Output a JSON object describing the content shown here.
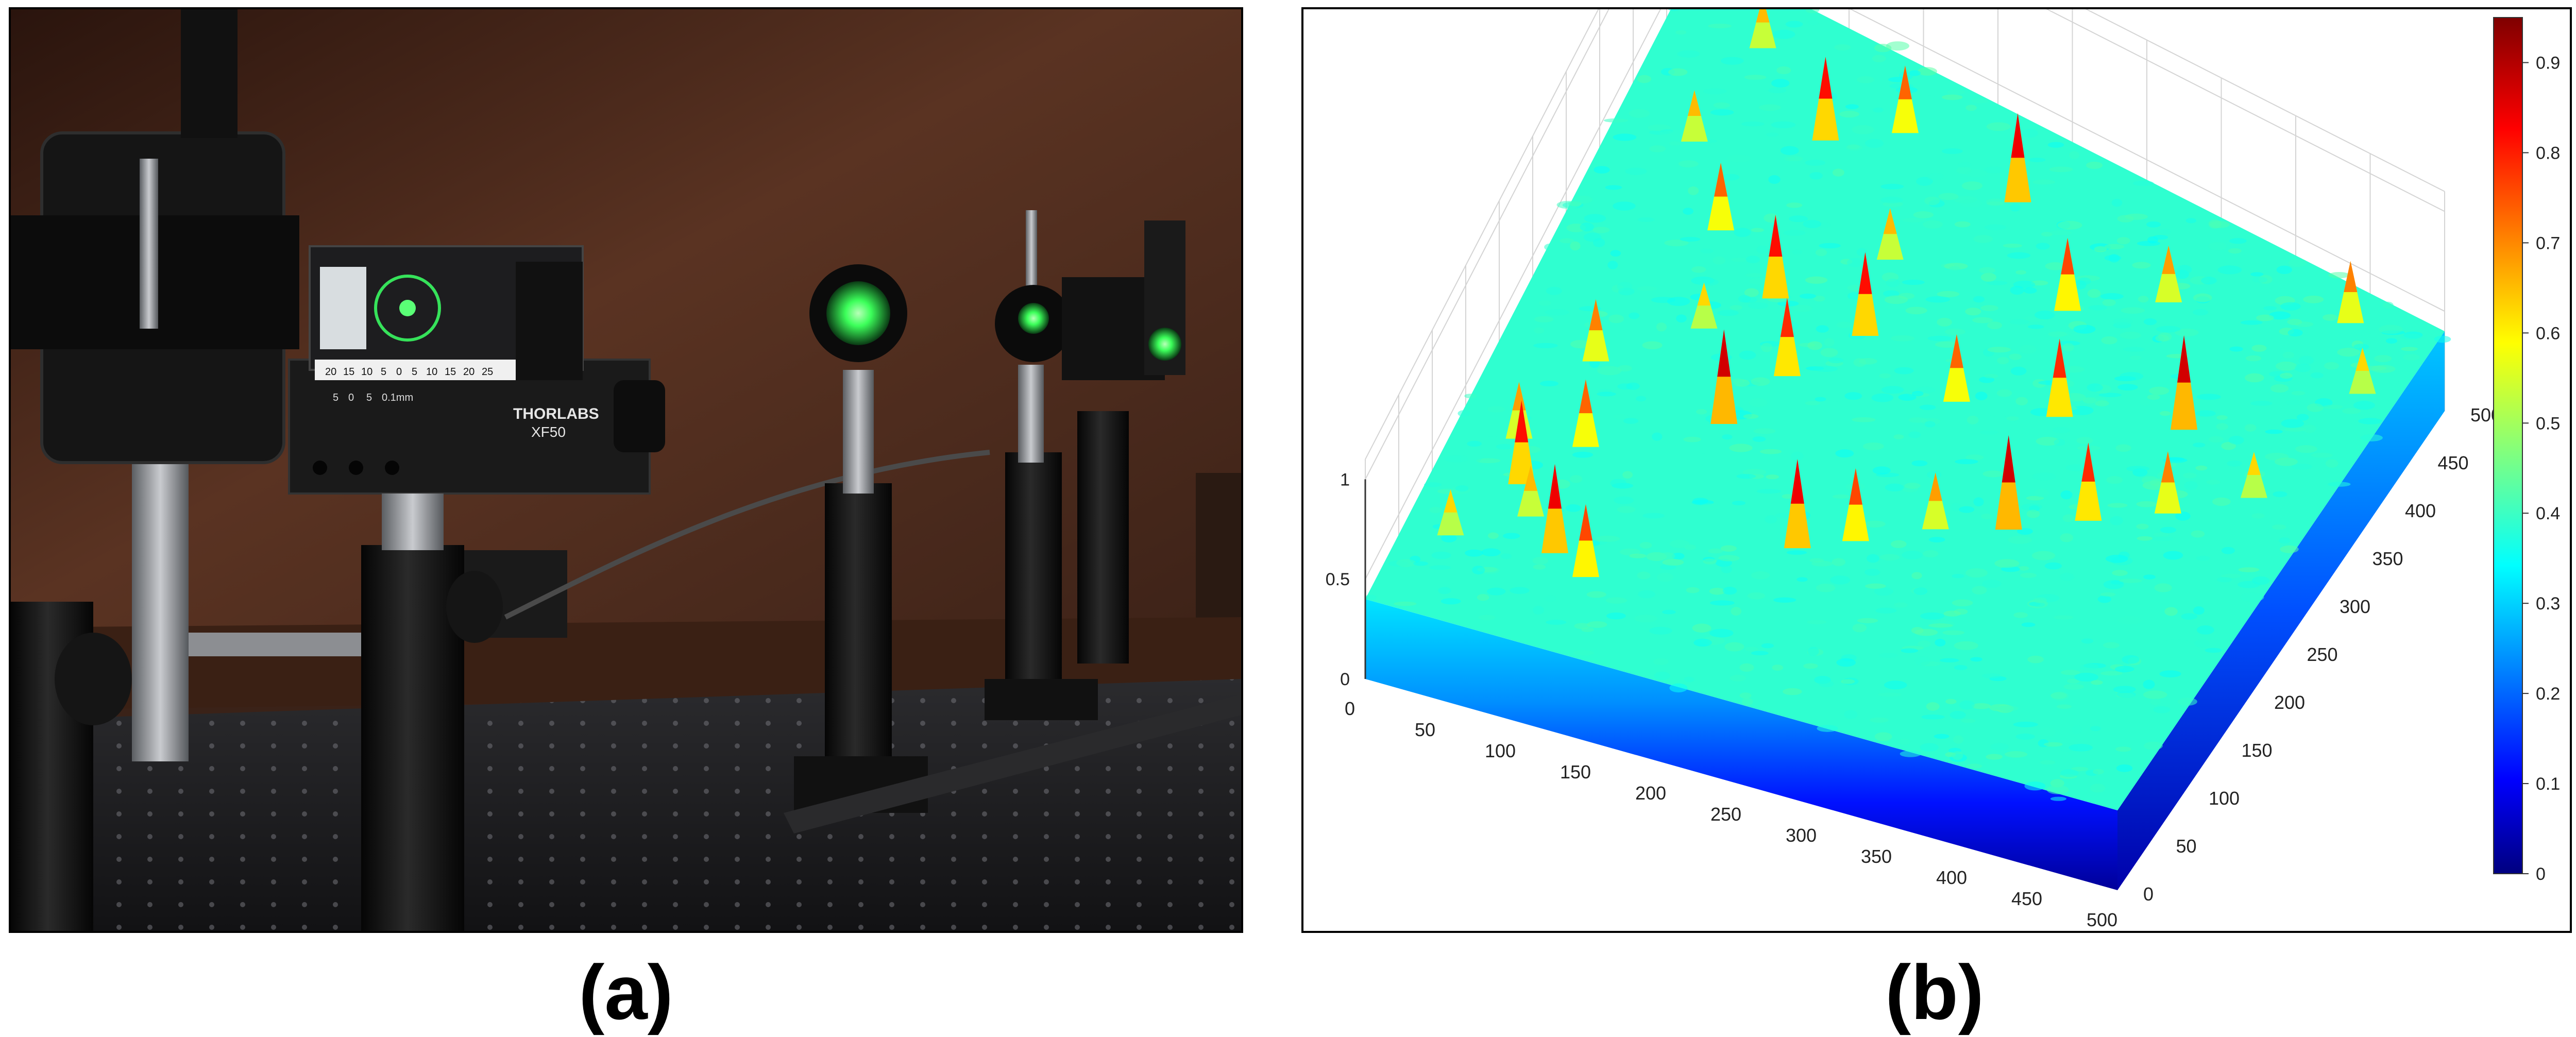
{
  "figure": {
    "panel_a": {
      "caption": "(a)",
      "brand_text": "THORLABS",
      "model_text": "XF50",
      "scale_numbers": [
        "20",
        "15",
        "10",
        "5",
        "0",
        "5",
        "10",
        "15",
        "20",
        "25"
      ],
      "scale_small": [
        "5",
        "0",
        "5",
        "0.1mm"
      ],
      "colors": {
        "wall": "#4a2a1c",
        "table": "#1c1c1e",
        "beam_spot": "#3cff5a",
        "post": "#0e0e0e"
      }
    },
    "panel_b": {
      "caption": "(b)",
      "colormap": "jet"
    }
  },
  "chart_data": {
    "type": "surface",
    "colormap": "jet",
    "x_ticks": [
      "0",
      "50",
      "100",
      "150",
      "200",
      "250",
      "300",
      "350",
      "400",
      "450",
      "500"
    ],
    "y_ticks": [
      "0",
      "50",
      "100",
      "150",
      "200",
      "250",
      "300",
      "350",
      "400",
      "450",
      "500"
    ],
    "z_ticks": [
      "0",
      "0.5",
      "1"
    ],
    "colorbar_ticks": [
      "0",
      "0.1",
      "0.2",
      "0.3",
      "0.4",
      "0.5",
      "0.6",
      "0.7",
      "0.8",
      "0.9"
    ],
    "xlim": [
      0,
      500
    ],
    "ylim": [
      0,
      500
    ],
    "zlim": [
      0,
      1
    ],
    "clim": [
      0,
      0.95
    ],
    "baseline_level": 0.4,
    "peak_level": 0.9,
    "peaks_xy": [
      [
        30,
        60
      ],
      [
        55,
        110
      ],
      [
        80,
        150
      ],
      [
        70,
        90
      ],
      [
        95,
        70
      ],
      [
        120,
        60
      ],
      [
        40,
        140
      ],
      [
        150,
        200
      ],
      [
        170,
        250
      ],
      [
        60,
        210
      ],
      [
        110,
        260
      ],
      [
        140,
        300
      ],
      [
        90,
        330
      ],
      [
        50,
        380
      ],
      [
        230,
        130
      ],
      [
        260,
        150
      ],
      [
        300,
        180
      ],
      [
        340,
        200
      ],
      [
        380,
        230
      ],
      [
        420,
        260
      ],
      [
        460,
        300
      ],
      [
        120,
        420
      ],
      [
        160,
        450
      ],
      [
        60,
        460
      ],
      [
        240,
        440
      ],
      [
        300,
        380
      ],
      [
        350,
        420
      ],
      [
        400,
        330
      ],
      [
        330,
        300
      ],
      [
        450,
        470
      ],
      [
        480,
        420
      ],
      [
        200,
        300
      ],
      [
        270,
        280
      ],
      [
        190,
        360
      ]
    ],
    "grid": true
  }
}
